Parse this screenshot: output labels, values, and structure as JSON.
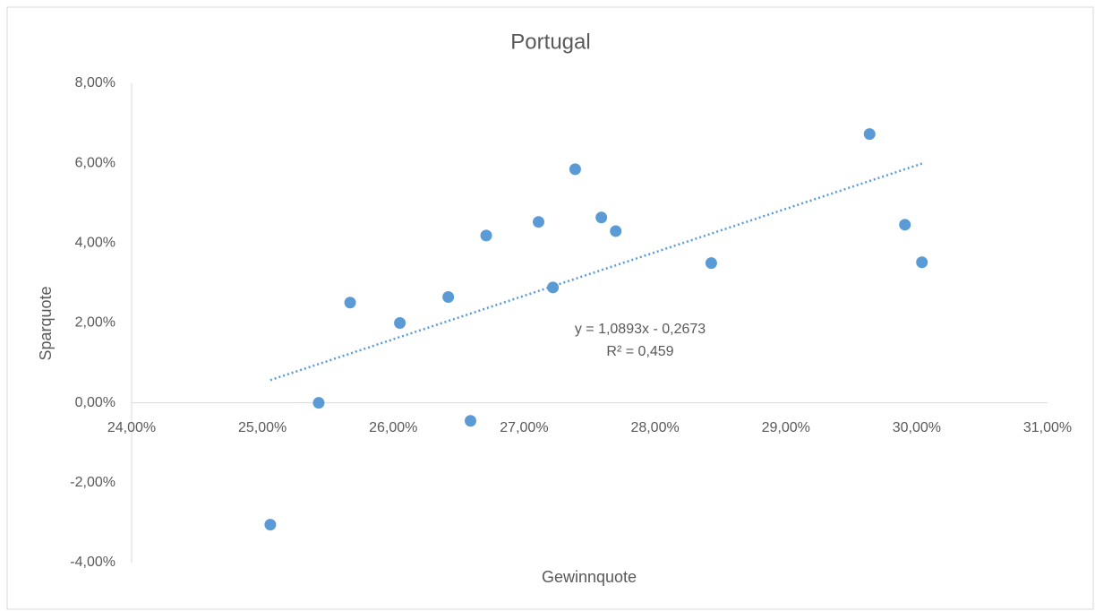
{
  "chart_data": {
    "type": "scatter",
    "title": "Portugal",
    "x_label": "Gewinnquote",
    "y_label": "Sparquote",
    "series": [
      {
        "color": "#5b9bd5",
        "x": [
          25.06,
          25.43,
          25.67,
          26.05,
          26.42,
          26.59,
          26.71,
          27.11,
          27.22,
          27.39,
          27.59,
          27.7,
          28.43,
          29.64,
          29.91,
          30.04
        ],
        "values": [
          -3.05,
          0.0,
          2.51,
          2.0,
          2.65,
          -0.45,
          4.19,
          4.53,
          2.89,
          5.85,
          4.64,
          4.3,
          3.5,
          6.73,
          4.46,
          3.52
        ]
      }
    ],
    "trendline": {
      "color": "#5b9bd5",
      "x": [
        25.06,
        30.04
      ],
      "values": [
        0.57,
        5.99
      ],
      "annotation": [
        "y = 1,0893x - 0,2673",
        "R² = 0,459"
      ]
    },
    "xlim": [
      24,
      31
    ],
    "xticks": [
      {
        "value": 24,
        "label": "24,00%"
      },
      {
        "value": 25,
        "label": "25,00%"
      },
      {
        "value": 26,
        "label": "26,00%"
      },
      {
        "value": 27,
        "label": "27,00%"
      },
      {
        "value": 28,
        "label": "28,00%"
      },
      {
        "value": 29,
        "label": "29,00%"
      },
      {
        "value": 30,
        "label": "30,00%"
      },
      {
        "value": 31,
        "label": "31,00%"
      }
    ],
    "ylim": [
      -4,
      8
    ],
    "yticks": [
      {
        "value": -4,
        "label": "-4,00%"
      },
      {
        "value": -2,
        "label": "-2,00%"
      },
      {
        "value": 0,
        "label": "0,00%"
      },
      {
        "value": 2,
        "label": "2,00%"
      },
      {
        "value": 4,
        "label": "4,00%"
      },
      {
        "value": 6,
        "label": "6,00%"
      },
      {
        "value": 8,
        "label": "8,00%"
      }
    ],
    "grid": false
  }
}
